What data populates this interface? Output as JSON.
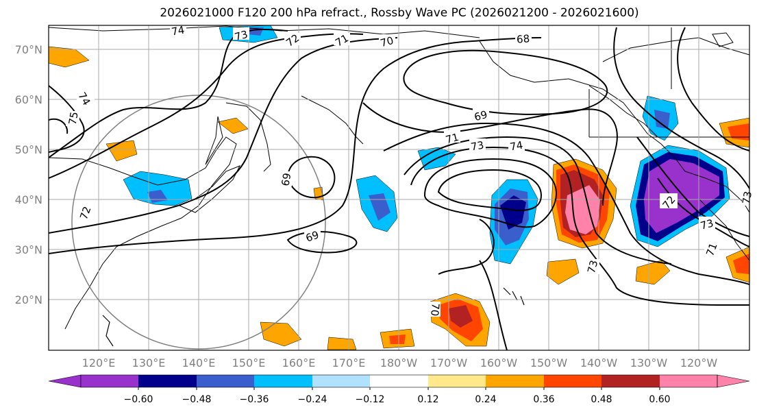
{
  "title": "2026021000 F120 200 hPa refract., Rossby Wave PC (2026021200 - 2026021600)",
  "latitude_labels": [
    "70°N",
    "60°N",
    "50°N",
    "40°N",
    "30°N",
    "20°N"
  ],
  "longitude_labels": [
    "120°E",
    "130°E",
    "140°E",
    "150°E",
    "160°E",
    "170°E",
    "180°W",
    "170°W",
    "160°W",
    "150°W",
    "140°W",
    "130°W",
    "120°W"
  ],
  "contour_labels": [
    "74",
    "73",
    "72",
    "71",
    "70",
    "68",
    "75",
    "74",
    "72",
    "69",
    "69",
    "71",
    "73",
    "74",
    "69",
    "72",
    "73",
    "73",
    "71",
    "70",
    "73"
  ],
  "colorbar": {
    "ticks": [
      "−0.60",
      "−0.48",
      "−0.36",
      "−0.24",
      "−0.12",
      "0.12",
      "0.24",
      "0.36",
      "0.48",
      "0.60"
    ],
    "colors": [
      "#9932CC",
      "#00008B",
      "#3A5FCD",
      "#00BFFF",
      "#B0E2FF",
      "#FFFFFF",
      "#FFE98A",
      "#FFA500",
      "#FF4500",
      "#B22222",
      "#FF82AB"
    ]
  }
}
